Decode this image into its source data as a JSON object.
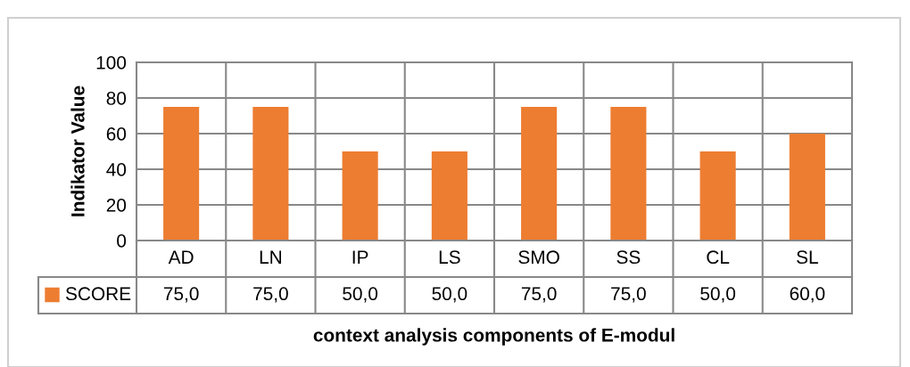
{
  "chart_data": {
    "type": "bar",
    "xlabel": "context analysis components of E-modul",
    "ylabel": "Indikator Value",
    "categories": [
      "AD",
      "LN",
      "IP",
      "LS",
      "SMO",
      "SS",
      "CL",
      "SL"
    ],
    "series": [
      {
        "name": "SCORE",
        "color": "#ed7d31",
        "values": [
          75,
          75,
          50,
          50,
          75,
          75,
          50,
          60
        ],
        "value_labels": [
          "75,0",
          "75,0",
          "50,0",
          "50,0",
          "75,0",
          "75,0",
          "50,0",
          "60,0"
        ]
      }
    ],
    "ylim": [
      0,
      100
    ],
    "yticks": [
      0,
      20,
      40,
      60,
      80,
      100
    ],
    "grid": "y"
  }
}
